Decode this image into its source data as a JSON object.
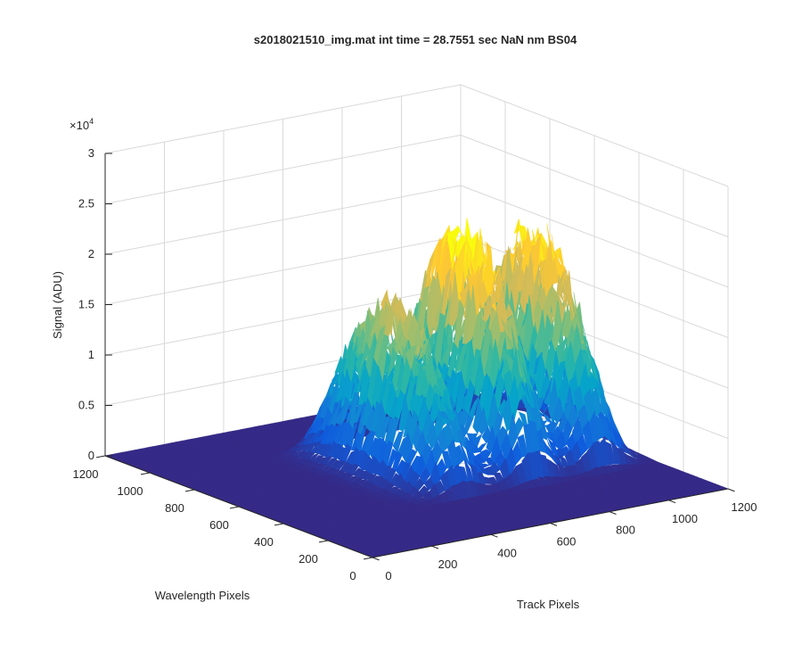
{
  "chart_data": {
    "type": "surface",
    "title": "s2018021510_img.mat int time = 28.7551 sec  NaN nm BS04",
    "xlabel": "Track Pixels",
    "ylabel": "Wavelength Pixels",
    "zlabel": "Signal (ADU)",
    "z_exponent_label": "×10",
    "z_exponent_power": "4",
    "xlim": [
      0,
      1200
    ],
    "ylim": [
      0,
      1200
    ],
    "zlim": [
      0,
      3
    ],
    "x_ticks": [
      "0",
      "200",
      "400",
      "600",
      "800",
      "1000",
      "1200"
    ],
    "y_ticks": [
      "0",
      "200",
      "400",
      "600",
      "800",
      "1000",
      "1200"
    ],
    "z_ticks": [
      "0",
      "0.5",
      "1",
      "1.5",
      "2",
      "2.5",
      "3"
    ],
    "grid": true,
    "colormap": [
      "#352a87",
      "#0f5cdd",
      "#1481d6",
      "#06a4ca",
      "#2eb7a4",
      "#87bf77",
      "#d1bb59",
      "#fec832",
      "#f9fb0e"
    ],
    "peaks": [
      {
        "track_center": 560,
        "track_width": 90,
        "wavelength_range": [
          300,
          950
        ],
        "wavelength_center": 650,
        "peak_signal": 1.55
      },
      {
        "track_center": 800,
        "track_width": 85,
        "wavelength_range": [
          300,
          950
        ],
        "wavelength_center": 640,
        "peak_signal": 2.1
      },
      {
        "track_center": 1030,
        "track_width": 85,
        "wavelength_range": [
          300,
          950
        ],
        "wavelength_center": 640,
        "peak_signal": 2.0
      }
    ]
  }
}
